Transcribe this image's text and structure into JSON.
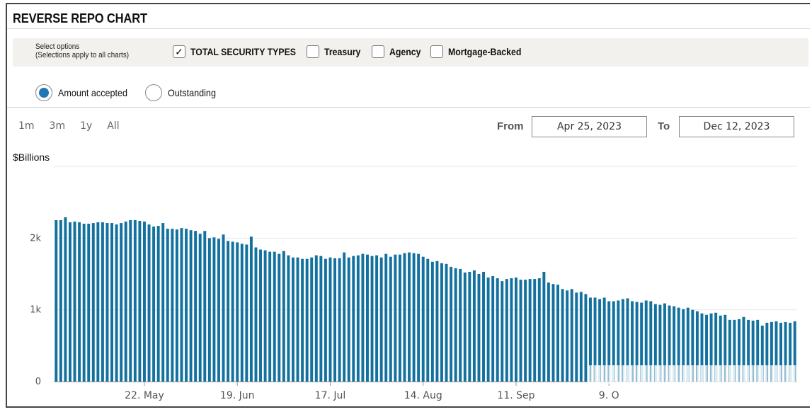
{
  "title": "REVERSE REPO CHART",
  "options": {
    "hint_line1": "Select options",
    "hint_line2": "(Selections apply to all charts)",
    "checkboxes": [
      {
        "label": "TOTAL SECURITY TYPES",
        "checked": true
      },
      {
        "label": "Treasury",
        "checked": false
      },
      {
        "label": "Agency",
        "checked": false
      },
      {
        "label": "Mortgage-Backed",
        "checked": false
      }
    ],
    "check_glyph": "✓"
  },
  "radios": [
    {
      "label": "Amount accepted",
      "selected": true
    },
    {
      "label": "Outstanding",
      "selected": false
    }
  ],
  "ranges": [
    "1m",
    "3m",
    "1y",
    "All"
  ],
  "date_range": {
    "from_label": "From",
    "from_value": "Apr 25, 2023",
    "to_label": "To",
    "to_value": "Dec 12, 2023"
  },
  "colors": {
    "bar": "#12719e",
    "accent": "#1f77b4"
  },
  "chart_data": {
    "type": "bar",
    "ylabel": "$Billions",
    "ylim": [
      0,
      3000
    ],
    "yticks": [
      {
        "value": 0,
        "label": "0"
      },
      {
        "value": 1000,
        "label": "1k"
      },
      {
        "value": 2000,
        "label": "2k"
      }
    ],
    "x_tick_labels": [
      {
        "label": "22. May",
        "index": 19
      },
      {
        "label": "19. Jun",
        "index": 39
      },
      {
        "label": "17. Jul",
        "index": 59
      },
      {
        "label": "14. Aug",
        "index": 79
      },
      {
        "label": "11. Sep",
        "index": 99
      },
      {
        "label": "9. O",
        "index": 119
      }
    ],
    "grid": true,
    "values": [
      2250,
      2250,
      2290,
      2220,
      2230,
      2220,
      2200,
      2200,
      2210,
      2220,
      2220,
      2210,
      2210,
      2190,
      2210,
      2230,
      2250,
      2250,
      2240,
      2230,
      2190,
      2160,
      2170,
      2210,
      2130,
      2130,
      2120,
      2140,
      2130,
      2110,
      2100,
      2060,
      2100,
      2000,
      2010,
      1990,
      2050,
      1960,
      1950,
      1940,
      1920,
      1910,
      2020,
      1870,
      1840,
      1830,
      1810,
      1810,
      1780,
      1820,
      1760,
      1730,
      1730,
      1710,
      1710,
      1730,
      1760,
      1750,
      1710,
      1730,
      1720,
      1720,
      1800,
      1730,
      1750,
      1760,
      1780,
      1770,
      1750,
      1760,
      1730,
      1780,
      1740,
      1770,
      1770,
      1790,
      1800,
      1790,
      1780,
      1740,
      1710,
      1670,
      1680,
      1650,
      1640,
      1600,
      1580,
      1570,
      1520,
      1530,
      1550,
      1500,
      1530,
      1450,
      1470,
      1440,
      1400,
      1430,
      1440,
      1450,
      1420,
      1420,
      1430,
      1430,
      1440,
      1530,
      1380,
      1360,
      1350,
      1290,
      1270,
      1290,
      1240,
      1250,
      1220,
      1170,
      1170,
      1150,
      1170,
      1120,
      1120,
      1130,
      1150,
      1160,
      1120,
      1110,
      1100,
      1130,
      1120,
      1080,
      1070,
      1090,
      1060,
      1050,
      1030,
      1010,
      1030,
      1000,
      980,
      950,
      930,
      950,
      960,
      920,
      930,
      860,
      860,
      870,
      900,
      860,
      850,
      860,
      780,
      820,
      830,
      840,
      820,
      830,
      820,
      840
    ]
  }
}
